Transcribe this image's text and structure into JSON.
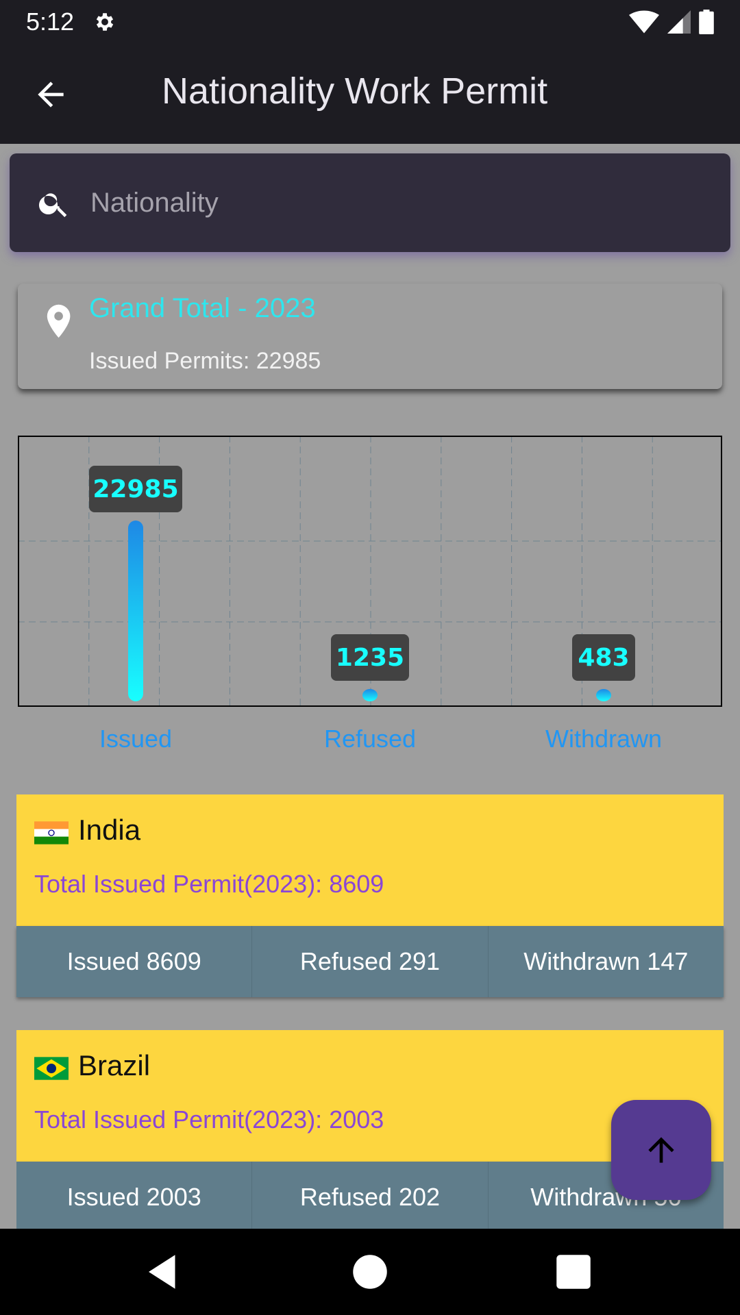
{
  "status_bar": {
    "time": "5:12",
    "icons": [
      "gear-icon",
      "wifi-icon",
      "signal-icon",
      "battery-icon"
    ]
  },
  "app_bar": {
    "title": "Nationality Work Permit",
    "back_icon": "arrow-left-icon"
  },
  "search": {
    "placeholder": "Nationality",
    "value": "",
    "icon": "search-icon"
  },
  "grand_total": {
    "title": "Grand Total - 2023",
    "subtitle": "Issued Permits: 22985",
    "icon": "location-pin-icon"
  },
  "chart_data": {
    "type": "bar",
    "categories": [
      "Issued",
      "Refused",
      "Withdrawn"
    ],
    "values": [
      22985,
      1235,
      483
    ],
    "value_labels": [
      "22985",
      "1235",
      "483"
    ],
    "ylim": [
      0,
      25284
    ],
    "grid": true
  },
  "countries": [
    {
      "flag": "india-flag-icon",
      "name": "India",
      "total": "Total Issued Permit(2023): 8609",
      "issued": "Issued 8609",
      "refused": "Refused 291",
      "withdrawn": "Withdrawn 147"
    },
    {
      "flag": "brazil-flag-icon",
      "name": "Brazil",
      "total": "Total Issued Permit(2023): 2003",
      "issued": "Issued 2003",
      "refused": "Refused 202",
      "withdrawn": "Withdrawn 56"
    }
  ],
  "fab": {
    "icon": "arrow-up-icon"
  },
  "nav_bar": {
    "icons": [
      "back-triangle-icon",
      "home-circle-icon",
      "recents-square-icon"
    ]
  },
  "colors": {
    "bar_bar": "#1e88e5",
    "bar_gradient_bottom": "#18ffff",
    "label_bg": "#424242",
    "label_text": "#18ffff",
    "card_yellow": "#fdd63f",
    "stats_row": "#607d8b",
    "accent_purple": "#553a91"
  }
}
